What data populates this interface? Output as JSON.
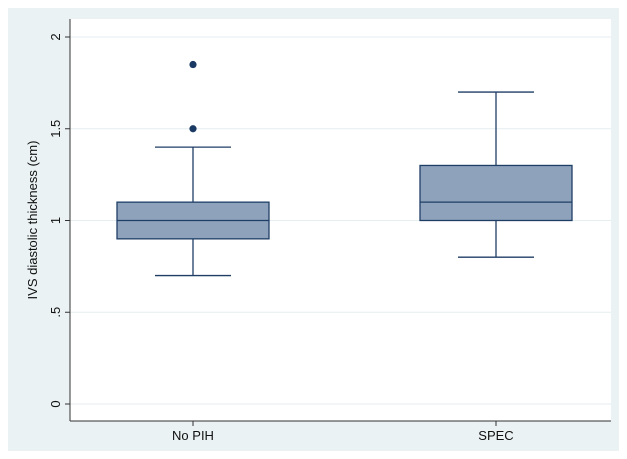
{
  "chart_data": {
    "type": "box",
    "title": "",
    "xlabel": "",
    "ylabel": "IVS diastolic thickness (cm)",
    "ylim": [
      0,
      2
    ],
    "yticks": [
      {
        "value": 0,
        "label": "0"
      },
      {
        "value": 0.5,
        "label": ".5"
      },
      {
        "value": 1,
        "label": "1"
      },
      {
        "value": 1.5,
        "label": "1.5"
      },
      {
        "value": 2,
        "label": "2"
      }
    ],
    "grid": true,
    "categories": [
      "No PIH",
      "SPEC"
    ],
    "boxes": [
      {
        "category": "No PIH",
        "whisker_low": 0.7,
        "q1": 0.9,
        "median": 1.0,
        "q3": 1.1,
        "whisker_high": 1.4,
        "outliers": [
          1.5,
          1.85
        ]
      },
      {
        "category": "SPEC",
        "whisker_low": 0.8,
        "q1": 1.0,
        "median": 1.1,
        "q3": 1.3,
        "whisker_high": 1.7,
        "outliers": []
      }
    ],
    "colors": {
      "outer_background": "#eaf2f3",
      "plot_background": "#ffffff",
      "box_fill": "#8ea3bb",
      "box_stroke": "#1f3e66",
      "outlier": "#1a3a63",
      "grid": "#e6eef0"
    }
  }
}
